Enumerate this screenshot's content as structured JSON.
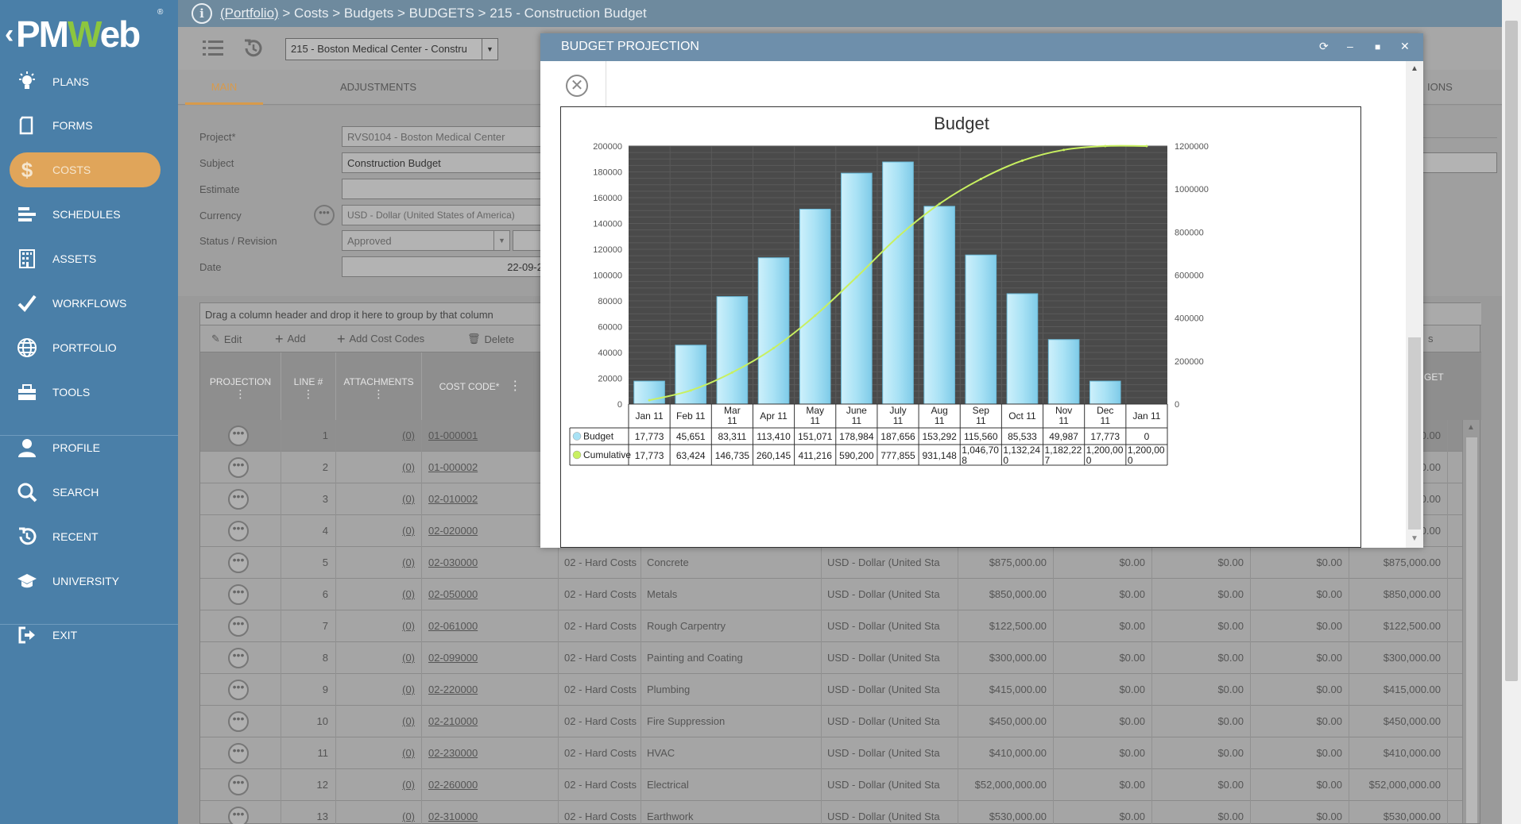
{
  "sidebar": {
    "logo": {
      "text_pm": "PM",
      "text_w": "W",
      "text_eb": "eb",
      "reg": "®"
    },
    "items": [
      {
        "label": "PLANS",
        "icon": "lightbulb-icon"
      },
      {
        "label": "FORMS",
        "icon": "document-icon"
      },
      {
        "label": "COSTS",
        "icon": "dollar-icon",
        "active": true
      },
      {
        "label": "SCHEDULES",
        "icon": "gantt-icon"
      },
      {
        "label": "ASSETS",
        "icon": "building-icon"
      },
      {
        "label": "WORKFLOWS",
        "icon": "checkmark-icon"
      },
      {
        "label": "PORTFOLIO",
        "icon": "globe-icon"
      },
      {
        "label": "TOOLS",
        "icon": "toolbox-icon"
      },
      {
        "label": "PROFILE",
        "icon": "user-icon"
      },
      {
        "label": "SEARCH",
        "icon": "search-icon"
      },
      {
        "label": "RECENT",
        "icon": "history-icon"
      },
      {
        "label": "UNIVERSITY",
        "icon": "graduation-cap-icon"
      },
      {
        "label": "EXIT",
        "icon": "exit-icon"
      }
    ],
    "active_color": "#e0a55a"
  },
  "breadcrumb": {
    "portfolio": "(Portfolio)",
    "rest": " > Costs > Budgets > BUDGETS > 215 - Construction Budget"
  },
  "toolbar": {
    "project_select": "215 - Boston Medical Center - Constru"
  },
  "tabs": {
    "main": "MAIN",
    "adjustments": "ADJUSTMENTS",
    "options_partial": "IONS"
  },
  "form": {
    "project_label": "Project*",
    "project_value": "RVS0104 - Boston Medical Center",
    "subject_label": "Subject",
    "subject_value": "Construction Budget",
    "estimate_label": "Estimate",
    "estimate_value": "",
    "currency_label": "Currency",
    "currency_value": "USD - Dollar (United States of America)",
    "status_label": "Status / Revision",
    "status_value": "Approved",
    "date_label": "Date",
    "date_value": "22-09-2"
  },
  "grid": {
    "group_hint": "Drag a column header and drop it here to group by that column",
    "tools": {
      "edit": "Edit",
      "add": "Add",
      "add_cost_codes": "Add Cost Codes",
      "delete": "Delete",
      "partial_s": "s"
    },
    "headers": {
      "projection": "PROJECTION",
      "line": "LINE #",
      "attachments": "ATTACHMENTS",
      "cost_code": "COST CODE*",
      "budget_partial": "GET"
    },
    "rows": [
      {
        "line": "1",
        "att": "(0)",
        "code": "01-000001",
        "cat": "",
        "desc": "",
        "cur": "",
        "amount": "",
        "c1": "",
        "c2": "",
        "c3": "",
        "total": "00.00"
      },
      {
        "line": "2",
        "att": "(0)",
        "code": "01-000002",
        "cat": "",
        "desc": "",
        "cur": "",
        "amount": "",
        "c1": "",
        "c2": "",
        "c3": "",
        "total": "00.00"
      },
      {
        "line": "3",
        "att": "(0)",
        "code": "02-010002",
        "cat": "",
        "desc": "",
        "cur": "",
        "amount": "",
        "c1": "",
        "c2": "",
        "c3": "",
        "total": "00.00"
      },
      {
        "line": "4",
        "att": "(0)",
        "code": "02-020000",
        "cat": "",
        "desc": "",
        "cur": "",
        "amount": "",
        "c1": "",
        "c2": "",
        "c3": "",
        "total": "00.00"
      },
      {
        "line": "5",
        "att": "(0)",
        "code": "02-030000",
        "cat": "02 - Hard Costs",
        "desc": "Concrete",
        "cur": "USD - Dollar (United Sta",
        "amount": "$875,000.00",
        "c1": "$0.00",
        "c2": "$0.00",
        "c3": "$0.00",
        "total": "$875,000.00"
      },
      {
        "line": "6",
        "att": "(0)",
        "code": "02-050000",
        "cat": "02 - Hard Costs",
        "desc": "Metals",
        "cur": "USD - Dollar (United Sta",
        "amount": "$850,000.00",
        "c1": "$0.00",
        "c2": "$0.00",
        "c3": "$0.00",
        "total": "$850,000.00"
      },
      {
        "line": "7",
        "att": "(0)",
        "code": "02-061000",
        "cat": "02 - Hard Costs",
        "desc": "Rough Carpentry",
        "cur": "USD - Dollar (United Sta",
        "amount": "$122,500.00",
        "c1": "$0.00",
        "c2": "$0.00",
        "c3": "$0.00",
        "total": "$122,500.00"
      },
      {
        "line": "8",
        "att": "(0)",
        "code": "02-099000",
        "cat": "02 - Hard Costs",
        "desc": "Painting and Coating",
        "cur": "USD - Dollar (United Sta",
        "amount": "$300,000.00",
        "c1": "$0.00",
        "c2": "$0.00",
        "c3": "$0.00",
        "total": "$300,000.00"
      },
      {
        "line": "9",
        "att": "(0)",
        "code": "02-220000",
        "cat": "02 - Hard Costs",
        "desc": "Plumbing",
        "cur": "USD - Dollar (United Sta",
        "amount": "$415,000.00",
        "c1": "$0.00",
        "c2": "$0.00",
        "c3": "$0.00",
        "total": "$415,000.00"
      },
      {
        "line": "10",
        "att": "(0)",
        "code": "02-210000",
        "cat": "02 - Hard Costs",
        "desc": "Fire Suppression",
        "cur": "USD - Dollar (United Sta",
        "amount": "$450,000.00",
        "c1": "$0.00",
        "c2": "$0.00",
        "c3": "$0.00",
        "total": "$450,000.00"
      },
      {
        "line": "11",
        "att": "(0)",
        "code": "02-230000",
        "cat": "02 - Hard Costs",
        "desc": "HVAC",
        "cur": "USD - Dollar (United Sta",
        "amount": "$410,000.00",
        "c1": "$0.00",
        "c2": "$0.00",
        "c3": "$0.00",
        "total": "$410,000.00"
      },
      {
        "line": "12",
        "att": "(0)",
        "code": "02-260000",
        "cat": "02 - Hard Costs",
        "desc": "Electrical",
        "cur": "USD - Dollar (United Sta",
        "amount": "$52,000,000.00",
        "c1": "$0.00",
        "c2": "$0.00",
        "c3": "$0.00",
        "total": "$52,000,000.00"
      },
      {
        "line": "13",
        "att": "(0)",
        "code": "02-310000",
        "cat": "02 - Hard Costs",
        "desc": "Earthwork",
        "cur": "USD - Dollar (United Sta",
        "amount": "$530,000.00",
        "c1": "$0.00",
        "c2": "$0.00",
        "c3": "$0.00",
        "total": "$530,000.00"
      }
    ]
  },
  "modal": {
    "title": "BUDGET PROJECTION",
    "header_color": "#6e8fab"
  },
  "chart_data": {
    "type": "bar",
    "title": "Budget",
    "categories": [
      "Jan 11",
      "Feb 11",
      "Mar 11",
      "Apr 11",
      "May 11",
      "June 11",
      "July 11",
      "Aug 11",
      "Sep 11",
      "Oct 11",
      "Nov 11",
      "Dec 11",
      "Jan 11"
    ],
    "category_lines": [
      [
        "Jan 11"
      ],
      [
        "Feb 11"
      ],
      [
        "Mar",
        "11"
      ],
      [
        "Apr 11"
      ],
      [
        "May",
        "11"
      ],
      [
        "June",
        "11"
      ],
      [
        "July",
        "11"
      ],
      [
        "Aug",
        "11"
      ],
      [
        "Sep",
        "11"
      ],
      [
        "Oct 11"
      ],
      [
        "Nov",
        "11"
      ],
      [
        "Dec",
        "11"
      ],
      [
        "Jan 11"
      ]
    ],
    "series": [
      {
        "name": "Budget",
        "type": "bar",
        "axis": "left",
        "color": "#a9e2f5",
        "values": [
          17773,
          45651,
          83311,
          113410,
          151071,
          178984,
          187656,
          153292,
          115560,
          85533,
          49987,
          17773,
          0
        ]
      },
      {
        "name": "Cumulative",
        "type": "line",
        "axis": "right",
        "color": "#c8f060",
        "values": [
          17773,
          63424,
          146735,
          260145,
          411216,
          590200,
          777855,
          931148,
          1046708,
          1132240,
          1182227,
          1200000,
          1200000
        ]
      }
    ],
    "table_rows": [
      {
        "name": "Budget",
        "cells": [
          "17,773",
          "45,651",
          "83,311",
          "113,410",
          "151,071",
          "178,984",
          "187,656",
          "153,292",
          "115,560",
          "85,533",
          "49,987",
          "17,773",
          "0"
        ]
      },
      {
        "name": "Cumulative",
        "cells": [
          [
            "17,773"
          ],
          [
            "63,424"
          ],
          [
            "146,735"
          ],
          [
            "260,145"
          ],
          [
            "411,216"
          ],
          [
            "590,200"
          ],
          [
            "777,855"
          ],
          [
            "931,148"
          ],
          [
            "1,046,70",
            "8"
          ],
          [
            "1,132,24",
            "0"
          ],
          [
            "1,182,22",
            "7"
          ],
          [
            "1,200,00",
            "0"
          ],
          [
            "1,200,00",
            "0"
          ]
        ]
      }
    ],
    "left_axis": {
      "min": 0,
      "max": 200000,
      "ticks": [
        0,
        20000,
        40000,
        60000,
        80000,
        100000,
        120000,
        140000,
        160000,
        180000,
        200000
      ]
    },
    "right_axis": {
      "min": 0,
      "max": 1200000,
      "ticks": [
        0,
        200000,
        400000,
        600000,
        800000,
        1000000,
        1200000
      ]
    },
    "plot_background": "#4a4a4a",
    "grid": true,
    "legend": "data-table"
  }
}
